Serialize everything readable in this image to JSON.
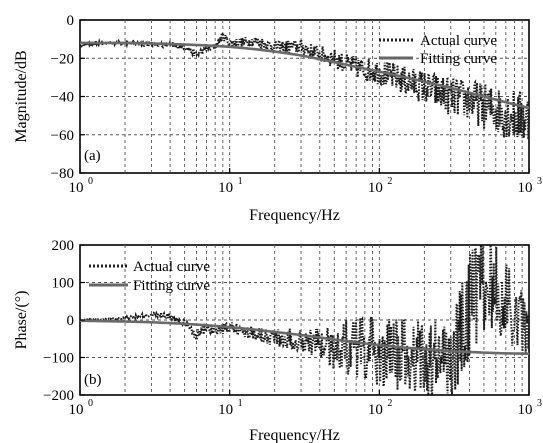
{
  "chart_data": [
    {
      "type": "line",
      "panel_label": "(a)",
      "xlabel": "Frequency/Hz",
      "ylabel": "Magnitude/dB",
      "x_scale": "log",
      "xlim": [
        1,
        1000
      ],
      "ylim": [
        -80,
        0
      ],
      "x_ticks": [
        {
          "base": "10",
          "exp": "0"
        },
        {
          "base": "10",
          "exp": "1"
        },
        {
          "base": "10",
          "exp": "2"
        },
        {
          "base": "10",
          "exp": "3"
        }
      ],
      "y_ticks": [
        "0",
        "−20",
        "−40",
        "−60",
        "−80"
      ],
      "y_tick_values": [
        0,
        -20,
        -40,
        -60,
        -80
      ],
      "grid": true,
      "legend_position": "top-right",
      "series": [
        {
          "name": "Actual curve",
          "style": "dotted",
          "noisy": true,
          "x": [
            1,
            1.5,
            2,
            3,
            4,
            5,
            6,
            7,
            8,
            9,
            10,
            15,
            20,
            30,
            40,
            50,
            60,
            80,
            100,
            150,
            200,
            300,
            400,
            500,
            600,
            800,
            1000
          ],
          "y": [
            -13,
            -12,
            -12,
            -12.5,
            -13,
            -14,
            -18,
            -15,
            -14,
            -8,
            -12,
            -11,
            -14,
            -14,
            -18,
            -20,
            -23,
            -26,
            -27,
            -32,
            -35,
            -40,
            -42,
            -45,
            -47,
            -50,
            -52
          ]
        },
        {
          "name": "Fitting curve",
          "style": "solid",
          "x": [
            1,
            2,
            3,
            5,
            7,
            10,
            15,
            20,
            30,
            50,
            70,
            100,
            150,
            200,
            300,
            500,
            700,
            1000
          ],
          "y": [
            -12,
            -12,
            -12.3,
            -12.8,
            -13.3,
            -14,
            -15.3,
            -16.5,
            -18.5,
            -22,
            -24.5,
            -27,
            -30,
            -32.2,
            -35.5,
            -40,
            -43,
            -46
          ]
        }
      ]
    },
    {
      "type": "line",
      "panel_label": "(b)",
      "xlabel": "Frequency/Hz",
      "ylabel": "Phase/(°)",
      "x_scale": "log",
      "xlim": [
        1,
        1000
      ],
      "ylim": [
        -200,
        200
      ],
      "x_ticks": [
        {
          "base": "10",
          "exp": "0"
        },
        {
          "base": "10",
          "exp": "1"
        },
        {
          "base": "10",
          "exp": "2"
        },
        {
          "base": "10",
          "exp": "3"
        }
      ],
      "y_ticks": [
        "200",
        "100",
        "0",
        "−100",
        "−200"
      ],
      "y_tick_values": [
        200,
        100,
        0,
        -100,
        -200
      ],
      "grid": true,
      "legend_position": "top-left",
      "series": [
        {
          "name": "Actual curve",
          "style": "dotted",
          "noisy": true,
          "x": [
            1,
            1.5,
            2,
            3,
            4,
            5,
            6,
            7,
            8,
            10,
            15,
            20,
            30,
            40,
            50,
            60,
            80,
            100,
            150,
            200,
            300,
            400,
            500,
            600,
            800,
            1000
          ],
          "y": [
            0,
            2,
            5,
            15,
            10,
            -10,
            -40,
            -20,
            -30,
            -20,
            -35,
            -45,
            -55,
            -60,
            -75,
            -70,
            -80,
            -90,
            -95,
            -100,
            -110,
            40,
            100,
            80,
            20,
            -40
          ],
          "noise_amp": [
            2,
            2,
            3,
            5,
            8,
            10,
            15,
            15,
            15,
            15,
            20,
            25,
            30,
            40,
            60,
            80,
            90,
            100,
            100,
            110,
            120,
            140,
            130,
            120,
            100,
            80
          ]
        },
        {
          "name": "Fitting curve",
          "style": "solid",
          "x": [
            1,
            2,
            3,
            5,
            7,
            10,
            15,
            20,
            30,
            50,
            70,
            100,
            150,
            200,
            300,
            500,
            700,
            1000
          ],
          "y": [
            -2,
            -4,
            -6,
            -10,
            -14,
            -19,
            -26,
            -32,
            -40,
            -52,
            -60,
            -67,
            -74,
            -78,
            -83,
            -87,
            -89,
            -90
          ]
        }
      ]
    }
  ]
}
